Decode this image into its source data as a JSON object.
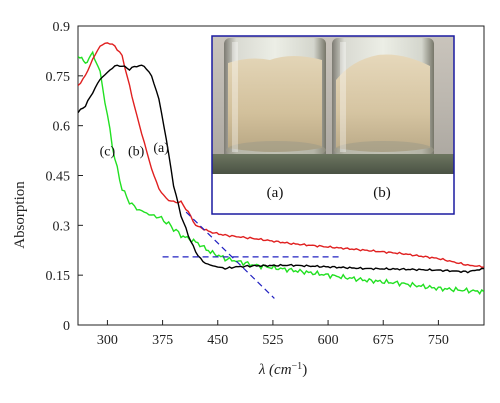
{
  "chart_data": {
    "type": "line",
    "xlabel": "λ (cm",
    "xlabel_sup": "−1",
    "xlabel_close": ")",
    "ylabel": "Absorption",
    "xlim": [
      260,
      812
    ],
    "ylim": [
      0,
      0.9
    ],
    "xticks": [
      300,
      375,
      450,
      525,
      600,
      675,
      750
    ],
    "xtick_labels": [
      "300",
      "375",
      "450",
      "525",
      "600",
      "675",
      "750"
    ],
    "yticks": [
      0,
      0.15,
      0.3,
      0.45,
      0.6,
      0.75,
      0.9
    ],
    "ytick_labels": [
      "0",
      "0.15",
      "0.3",
      "0.45",
      "0.6",
      "0.75",
      "0.9"
    ],
    "grid": false,
    "series": [
      {
        "label": "(a)",
        "color": "#000000",
        "x": [
          260,
          270,
          280,
          290,
          300,
          310,
          320,
          330,
          340,
          350,
          360,
          370,
          380,
          390,
          400,
          410,
          420,
          430,
          440,
          450,
          460,
          475,
          500,
          550,
          600,
          650,
          700,
          750,
          790,
          812
        ],
        "y": [
          0.64,
          0.66,
          0.7,
          0.74,
          0.76,
          0.78,
          0.78,
          0.77,
          0.78,
          0.78,
          0.75,
          0.68,
          0.56,
          0.42,
          0.33,
          0.27,
          0.22,
          0.19,
          0.18,
          0.175,
          0.17,
          0.175,
          0.178,
          0.18,
          0.175,
          0.17,
          0.168,
          0.165,
          0.16,
          0.17
        ]
      },
      {
        "label": "(b)",
        "color": "#e02020",
        "x": [
          260,
          270,
          280,
          290,
          300,
          310,
          320,
          330,
          340,
          350,
          360,
          370,
          380,
          390,
          400,
          410,
          420,
          440,
          460,
          500,
          550,
          600,
          650,
          700,
          750,
          790,
          812
        ],
        "y": [
          0.72,
          0.75,
          0.8,
          0.84,
          0.85,
          0.84,
          0.81,
          0.72,
          0.63,
          0.55,
          0.47,
          0.41,
          0.38,
          0.37,
          0.37,
          0.34,
          0.3,
          0.28,
          0.27,
          0.26,
          0.245,
          0.235,
          0.225,
          0.215,
          0.2,
          0.18,
          0.175
        ]
      },
      {
        "label": "(c)",
        "color": "#22e022",
        "x": [
          260,
          265,
          270,
          275,
          280,
          285,
          290,
          300,
          310,
          320,
          330,
          340,
          350,
          360,
          370,
          380,
          390,
          400,
          420,
          440,
          460,
          500,
          550,
          600,
          650,
          700,
          750,
          812
        ],
        "y": [
          0.81,
          0.8,
          0.79,
          0.8,
          0.82,
          0.79,
          0.76,
          0.63,
          0.5,
          0.41,
          0.37,
          0.35,
          0.34,
          0.33,
          0.325,
          0.31,
          0.29,
          0.27,
          0.25,
          0.22,
          0.2,
          0.18,
          0.165,
          0.15,
          0.135,
          0.125,
          0.11,
          0.1
        ]
      }
    ],
    "guides": [
      {
        "x": [
          375,
          617
        ],
        "y": [
          0.205,
          0.205
        ],
        "color": "#2020c0"
      },
      {
        "x": [
          407,
          527
        ],
        "y": [
          0.34,
          0.08
        ],
        "color": "#2020c0"
      }
    ],
    "annotations": [
      {
        "text": "(c)",
        "x": 300,
        "y": 0.51
      },
      {
        "text": "(b)",
        "x": 339,
        "y": 0.51
      },
      {
        "text": "(a)",
        "x": 373,
        "y": 0.52
      }
    ]
  },
  "inset": {
    "labels": [
      "(a)",
      "(b)"
    ],
    "frame_color": "#1a1aa0",
    "powder_colors": [
      "#d7c6a3",
      "#d6c7a4"
    ]
  }
}
